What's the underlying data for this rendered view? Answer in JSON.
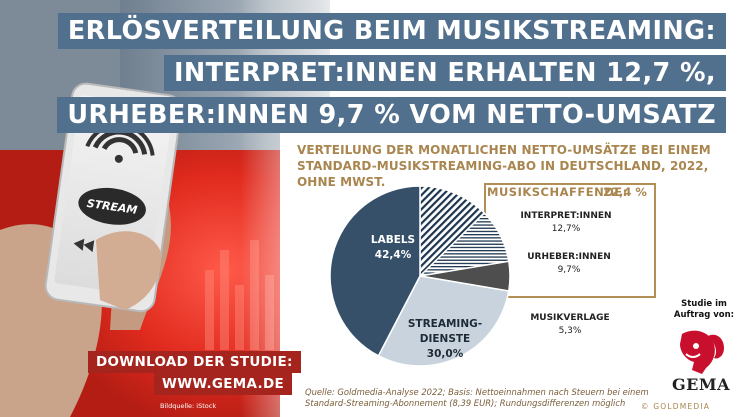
{
  "headline": {
    "line1": "ERLÖSVERTEILUNG BEIM MUSIKSTREAMING:",
    "line2": "INTERPRET:INNEN ERHALTEN 12,7 %,",
    "line3": "URHEBER:INNEN 9,7 % VOM NETTO-UMSATZ"
  },
  "subtitle": "VERTEILUNG DER MONATLICHEN NETTO-UMSÄTZE BEI EINEM STANDARD-MUSIKSTREAMING-ABO IN DEUTSCHLAND, 2022, OHNE MWST.",
  "musikschaffende": {
    "label": "MUSIKSCHAFFENDE:",
    "value": "22,4 %"
  },
  "phone": {
    "stream_label": "STREAM"
  },
  "chart_data": {
    "type": "pie",
    "title": "",
    "slices": [
      {
        "name": "INTERPRET:INNEN",
        "value": 12.7,
        "display": "12,7%",
        "color": "#1d3650",
        "pattern": "diagonal-hatch"
      },
      {
        "name": "URHEBER:INNEN",
        "value": 9.7,
        "display": "9,7%",
        "color": "#1d3650",
        "pattern": "horizontal-lines"
      },
      {
        "name": "MUSIKVERLAGE",
        "value": 5.3,
        "display": "5,3%",
        "color": "#4e4e4e",
        "pattern": "solid"
      },
      {
        "name": "STREAMING-DIENSTE",
        "value": 30.0,
        "display": "30,0%",
        "color": "#c9d3dd",
        "pattern": "solid"
      },
      {
        "name": "LABELS",
        "value": 42.4,
        "display": "42,4%",
        "color": "#36506a",
        "pattern": "solid"
      }
    ]
  },
  "source": {
    "line1": "Quelle: Goldmedia-Analyse 2022; Basis: Nettoeinnahmen nach Steuern bei einem",
    "line2": "Standard-Streaming-Abonnement (8,39 EUR); Rundungsdifferenzen möglich"
  },
  "download": {
    "line1": "DOWNLOAD DER STUDIE:",
    "line2": "WWW.GEMA.DE"
  },
  "image_credit": "Bildquelle: iStock",
  "studie_im_auftrag": "Studie im Auftrag von:",
  "gema_logo_text": "GEMA",
  "goldmedia": "© GOLDMEDIA",
  "colors": {
    "headline_band": "#51708e",
    "gold": "#a9864f",
    "download_red": "#a6241e"
  }
}
